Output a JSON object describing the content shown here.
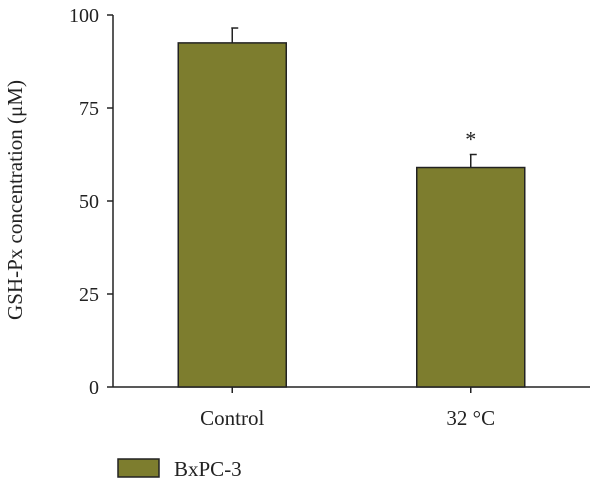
{
  "chart_data": {
    "type": "bar",
    "categories": [
      "Control",
      "32 °C"
    ],
    "series": [
      {
        "name": "BxPC-3",
        "values": [
          92.5,
          59.0
        ],
        "errors": [
          4.0,
          3.5
        ],
        "annotations": [
          "",
          "*"
        ]
      }
    ],
    "title": "",
    "xlabel": "",
    "ylabel": "GSH-Px concentration (μM)",
    "ylim": [
      0,
      100
    ],
    "yticks": [
      0,
      25,
      50,
      75,
      100
    ],
    "grid": false,
    "legend_position": "bottom-left",
    "colors": {
      "bar_fill": "#7d7d2e",
      "bar_stroke": "#222222",
      "axis": "#222222"
    }
  }
}
